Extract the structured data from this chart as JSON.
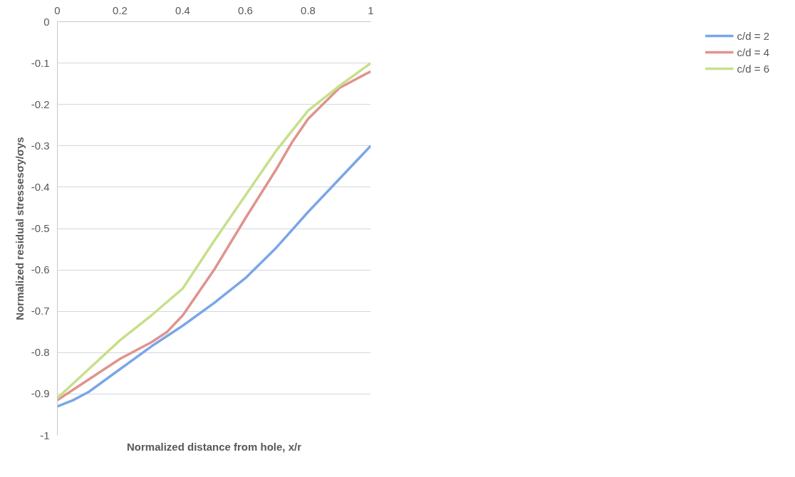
{
  "chart_data": {
    "type": "line",
    "xlabel": "Normalized distance from hole, x/r",
    "ylabel": "Normalized residual stressesσy/σys",
    "xlim": [
      0,
      1
    ],
    "xticks": [
      0,
      0.2,
      0.4,
      0.6,
      0.8,
      1
    ],
    "ylim": [
      -1,
      0
    ],
    "yticks": [
      -1,
      -0.9,
      -0.8,
      -0.7,
      -0.6,
      -0.5,
      -0.4,
      -0.3,
      -0.2,
      -0.1,
      0
    ],
    "grid": "y",
    "legend": "right",
    "marker": "none",
    "line_style": "solid",
    "series": [
      {
        "name": "c/d = 2",
        "color": "#7aa6e8",
        "x": [
          0,
          0.05,
          0.1,
          0.2,
          0.3,
          0.4,
          0.5,
          0.6,
          0.7,
          0.8,
          0.9,
          1
        ],
        "values": [
          -0.93,
          -0.915,
          -0.895,
          -0.84,
          -0.785,
          -0.735,
          -0.68,
          -0.62,
          -0.545,
          -0.46,
          -0.38,
          -0.3
        ]
      },
      {
        "name": "c/d = 4",
        "color": "#e0938c",
        "x": [
          0,
          0.1,
          0.2,
          0.3,
          0.35,
          0.4,
          0.5,
          0.6,
          0.7,
          0.75,
          0.8,
          0.9,
          1
        ],
        "values": [
          -0.915,
          -0.865,
          -0.815,
          -0.775,
          -0.75,
          -0.71,
          -0.6,
          -0.475,
          -0.355,
          -0.29,
          -0.235,
          -0.16,
          -0.12
        ]
      },
      {
        "name": "c/d = 6",
        "color": "#c6e08a",
        "x": [
          0,
          0.1,
          0.2,
          0.3,
          0.4,
          0.5,
          0.6,
          0.7,
          0.8,
          0.9,
          1
        ],
        "values": [
          -0.91,
          -0.84,
          -0.77,
          -0.71,
          -0.645,
          -0.53,
          -0.42,
          -0.31,
          -0.215,
          -0.155,
          -0.1
        ]
      }
    ]
  }
}
